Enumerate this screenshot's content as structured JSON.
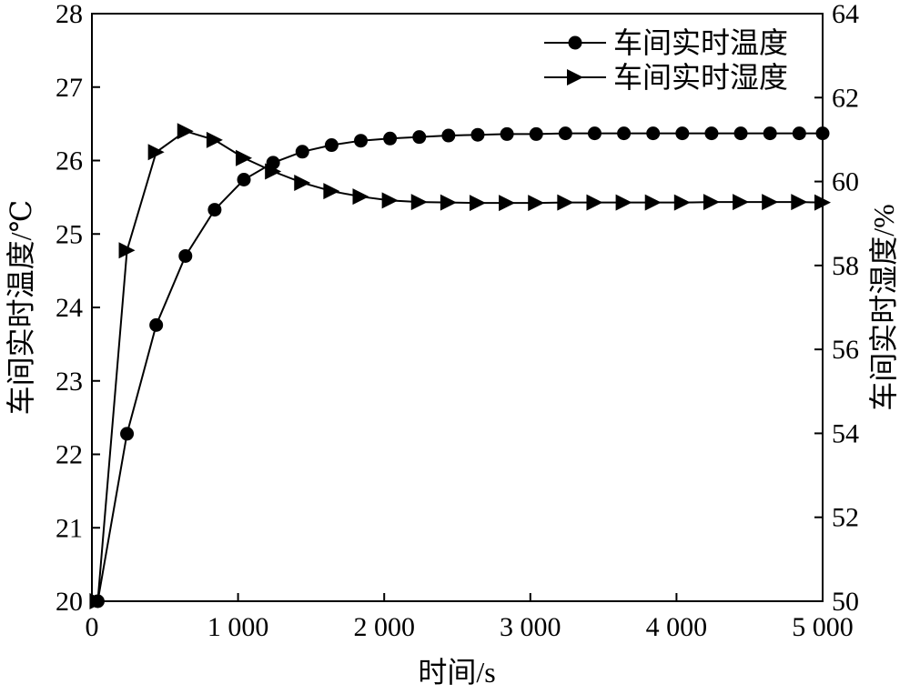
{
  "chart_data": {
    "type": "line",
    "xlabel": "时间/s",
    "ylabel_left": "车间实时温度/℃",
    "ylabel_right": "车间实时湿度/%",
    "xlim": [
      0,
      5000
    ],
    "ylim_left": [
      20,
      28
    ],
    "ylim_right": [
      50,
      64
    ],
    "x_ticks": [
      0,
      1000,
      2000,
      3000,
      4000,
      5000
    ],
    "x_tick_labels": [
      "0",
      "1 000",
      "2 000",
      "3 000",
      "4 000",
      "5 000"
    ],
    "y_left_ticks": [
      20,
      21,
      22,
      23,
      24,
      25,
      26,
      27,
      28
    ],
    "y_left_tick_labels": [
      "20",
      "21",
      "22",
      "23",
      "24",
      "25",
      "26",
      "27",
      "28"
    ],
    "y_right_ticks": [
      50,
      52,
      54,
      56,
      58,
      60,
      62,
      64
    ],
    "y_right_tick_labels": [
      "50",
      "52",
      "54",
      "56",
      "58",
      "60",
      "62",
      "64"
    ],
    "grid": false,
    "legend_position": "top-right",
    "series": [
      {
        "name": "车间实时温度",
        "axis": "left",
        "marker": "circle",
        "color": "#000000",
        "x": [
          40,
          240,
          440,
          640,
          840,
          1040,
          1240,
          1440,
          1640,
          1840,
          2040,
          2240,
          2440,
          2640,
          2840,
          3040,
          3240,
          3440,
          3640,
          3840,
          4040,
          4240,
          4440,
          4640,
          4840,
          5000
        ],
        "values": [
          20.0,
          22.28,
          23.76,
          24.7,
          25.33,
          25.74,
          25.97,
          26.12,
          26.21,
          26.27,
          26.3,
          26.32,
          26.34,
          26.35,
          26.36,
          26.36,
          26.37,
          26.37,
          26.37,
          26.37,
          26.37,
          26.37,
          26.37,
          26.37,
          26.37,
          26.37
        ]
      },
      {
        "name": "车间实时湿度",
        "axis": "right",
        "marker": "triangle-right",
        "color": "#000000",
        "x": [
          40,
          240,
          440,
          640,
          840,
          1040,
          1240,
          1440,
          1640,
          1840,
          2040,
          2240,
          2440,
          2640,
          2840,
          3040,
          3240,
          3440,
          3640,
          3840,
          4040,
          4240,
          4440,
          4640,
          4840,
          5000
        ],
        "values": [
          50.0,
          58.36,
          60.7,
          61.2,
          60.99,
          60.56,
          60.24,
          59.97,
          59.77,
          59.64,
          59.55,
          59.51,
          59.5,
          59.49,
          59.49,
          59.49,
          59.5,
          59.5,
          59.5,
          59.5,
          59.5,
          59.51,
          59.51,
          59.51,
          59.51,
          59.5
        ]
      }
    ]
  }
}
